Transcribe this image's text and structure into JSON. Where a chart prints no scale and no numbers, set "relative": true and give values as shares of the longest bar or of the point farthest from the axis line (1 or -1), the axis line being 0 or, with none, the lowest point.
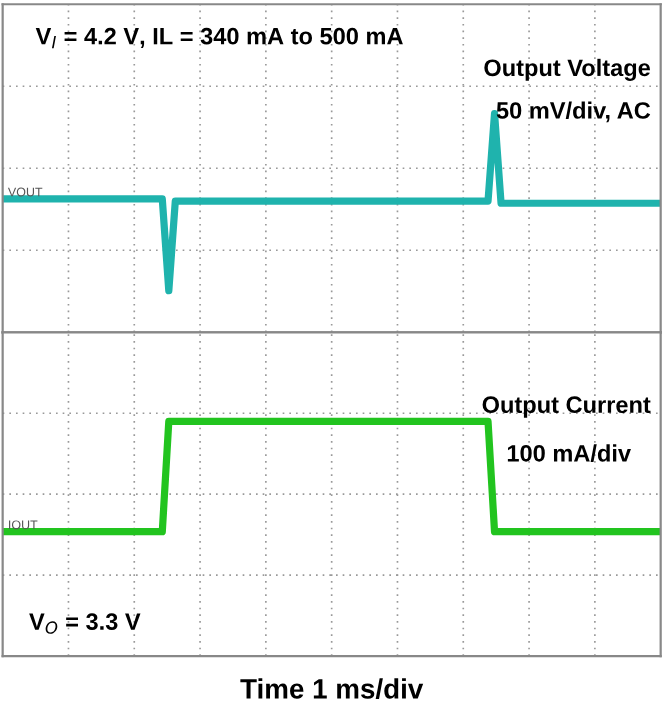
{
  "chart_data": [
    {
      "type": "line",
      "relative": true,
      "title": "V$_{I}$ = 4.2 V, IL = 340 mA to 500 mA",
      "annotations": [
        "Output Voltage",
        "50 mV/div, AC"
      ],
      "grid": true,
      "categories": [
        null,
        null,
        null,
        null,
        null,
        null,
        null,
        null,
        null,
        null,
        null,
        null,
        null,
        null,
        null,
        null,
        null,
        null,
        null,
        null,
        null,
        null,
        null,
        null,
        null,
        null,
        null,
        null,
        null,
        null,
        null,
        null,
        null,
        null,
        null,
        null,
        null,
        null,
        null,
        null,
        null,
        null,
        null,
        null,
        null,
        null,
        null,
        null,
        null,
        null,
        null,
        null,
        null,
        null,
        null,
        null,
        null,
        null,
        null,
        null,
        null,
        null,
        null,
        null,
        null,
        null,
        null,
        null,
        null,
        null,
        null,
        null,
        null,
        null,
        null,
        null,
        null,
        null,
        null,
        null,
        null,
        null,
        null,
        null,
        null,
        null,
        null,
        null,
        null,
        null,
        null,
        null,
        null,
        null,
        null,
        null,
        null,
        null,
        null,
        null,
        null
      ],
      "series": [
        {
          "name": "VOUT",
          "color": "#1fb3ad",
          "values": [
            0.61,
            0.61,
            0.61,
            0.61,
            0.61,
            0.61,
            0.61,
            0.61,
            0.61,
            0.61,
            0.61,
            0.61,
            0.61,
            0.61,
            0.61,
            0.61,
            0.61,
            0.61,
            0.61,
            0.61,
            0.61,
            0.61,
            0.61,
            0.61,
            0.61,
            0.19,
            0.6,
            0.6,
            0.6,
            0.6,
            0.6,
            0.6,
            0.6,
            0.6,
            0.6,
            0.6,
            0.6,
            0.6,
            0.6,
            0.6,
            0.6,
            0.6,
            0.6,
            0.6,
            0.6,
            0.6,
            0.6,
            0.6,
            0.6,
            0.6,
            0.6,
            0.6,
            0.6,
            0.6,
            0.6,
            0.6,
            0.6,
            0.6,
            0.6,
            0.6,
            0.6,
            0.6,
            0.6,
            0.6,
            0.6,
            0.6,
            0.6,
            0.6,
            0.6,
            0.6,
            0.6,
            0.6,
            0.6,
            0.6,
            0.6,
            1,
            0.59,
            0.59,
            0.59,
            0.59,
            0.59,
            0.59,
            0.59,
            0.59,
            0.59,
            0.59,
            0.59,
            0.59,
            0.59,
            0.59,
            0.59,
            0.59,
            0.59,
            0.59,
            0.59,
            0.59,
            0.59,
            0.59,
            0.59,
            0.59,
            0.59
          ]
        }
      ]
    },
    {
      "type": "line",
      "relative": true,
      "xlabel": "Time 1 ms/div",
      "annotations": [
        "Output Current",
        "100 mA/div",
        "V$_{O}$ = 3.3 V"
      ],
      "grid": true,
      "categories": [
        null,
        null,
        null,
        null,
        null,
        null,
        null,
        null,
        null,
        null,
        null,
        null,
        null,
        null,
        null,
        null,
        null,
        null,
        null,
        null,
        null,
        null,
        null,
        null,
        null,
        null,
        null,
        null,
        null,
        null,
        null,
        null,
        null,
        null,
        null,
        null,
        null,
        null,
        null,
        null,
        null,
        null,
        null,
        null,
        null,
        null,
        null,
        null,
        null,
        null,
        null,
        null,
        null,
        null,
        null,
        null,
        null,
        null,
        null,
        null,
        null,
        null,
        null,
        null,
        null,
        null,
        null,
        null,
        null,
        null,
        null,
        null,
        null,
        null,
        null,
        null,
        null,
        null,
        null,
        null,
        null,
        null,
        null,
        null,
        null,
        null,
        null,
        null,
        null,
        null,
        null,
        null,
        null,
        null,
        null,
        null,
        null,
        null,
        null,
        null,
        null
      ],
      "series": [
        {
          "name": "IOUT",
          "color": "#22c41f",
          "values": [
            0.53,
            0.53,
            0.53,
            0.53,
            0.53,
            0.53,
            0.53,
            0.53,
            0.53,
            0.53,
            0.53,
            0.53,
            0.53,
            0.53,
            0.53,
            0.53,
            0.53,
            0.53,
            0.53,
            0.53,
            0.53,
            0.53,
            0.53,
            0.53,
            0.53,
            1,
            1,
            1,
            1,
            1,
            1,
            1,
            1,
            1,
            1,
            1,
            1,
            1,
            1,
            1,
            1,
            1,
            1,
            1,
            1,
            1,
            1,
            1,
            1,
            1,
            1,
            1,
            1,
            1,
            1,
            1,
            1,
            1,
            1,
            1,
            1,
            1,
            1,
            1,
            1,
            1,
            1,
            1,
            1,
            1,
            1,
            1,
            1,
            1,
            1,
            0.53,
            0.53,
            0.53,
            0.53,
            0.53,
            0.53,
            0.53,
            0.53,
            0.53,
            0.53,
            0.53,
            0.53,
            0.53,
            0.53,
            0.53,
            0.53,
            0.53,
            0.53,
            0.53,
            0.53,
            0.53,
            0.53,
            0.53,
            0.53,
            0.53,
            0.53
          ]
        }
      ]
    }
  ]
}
